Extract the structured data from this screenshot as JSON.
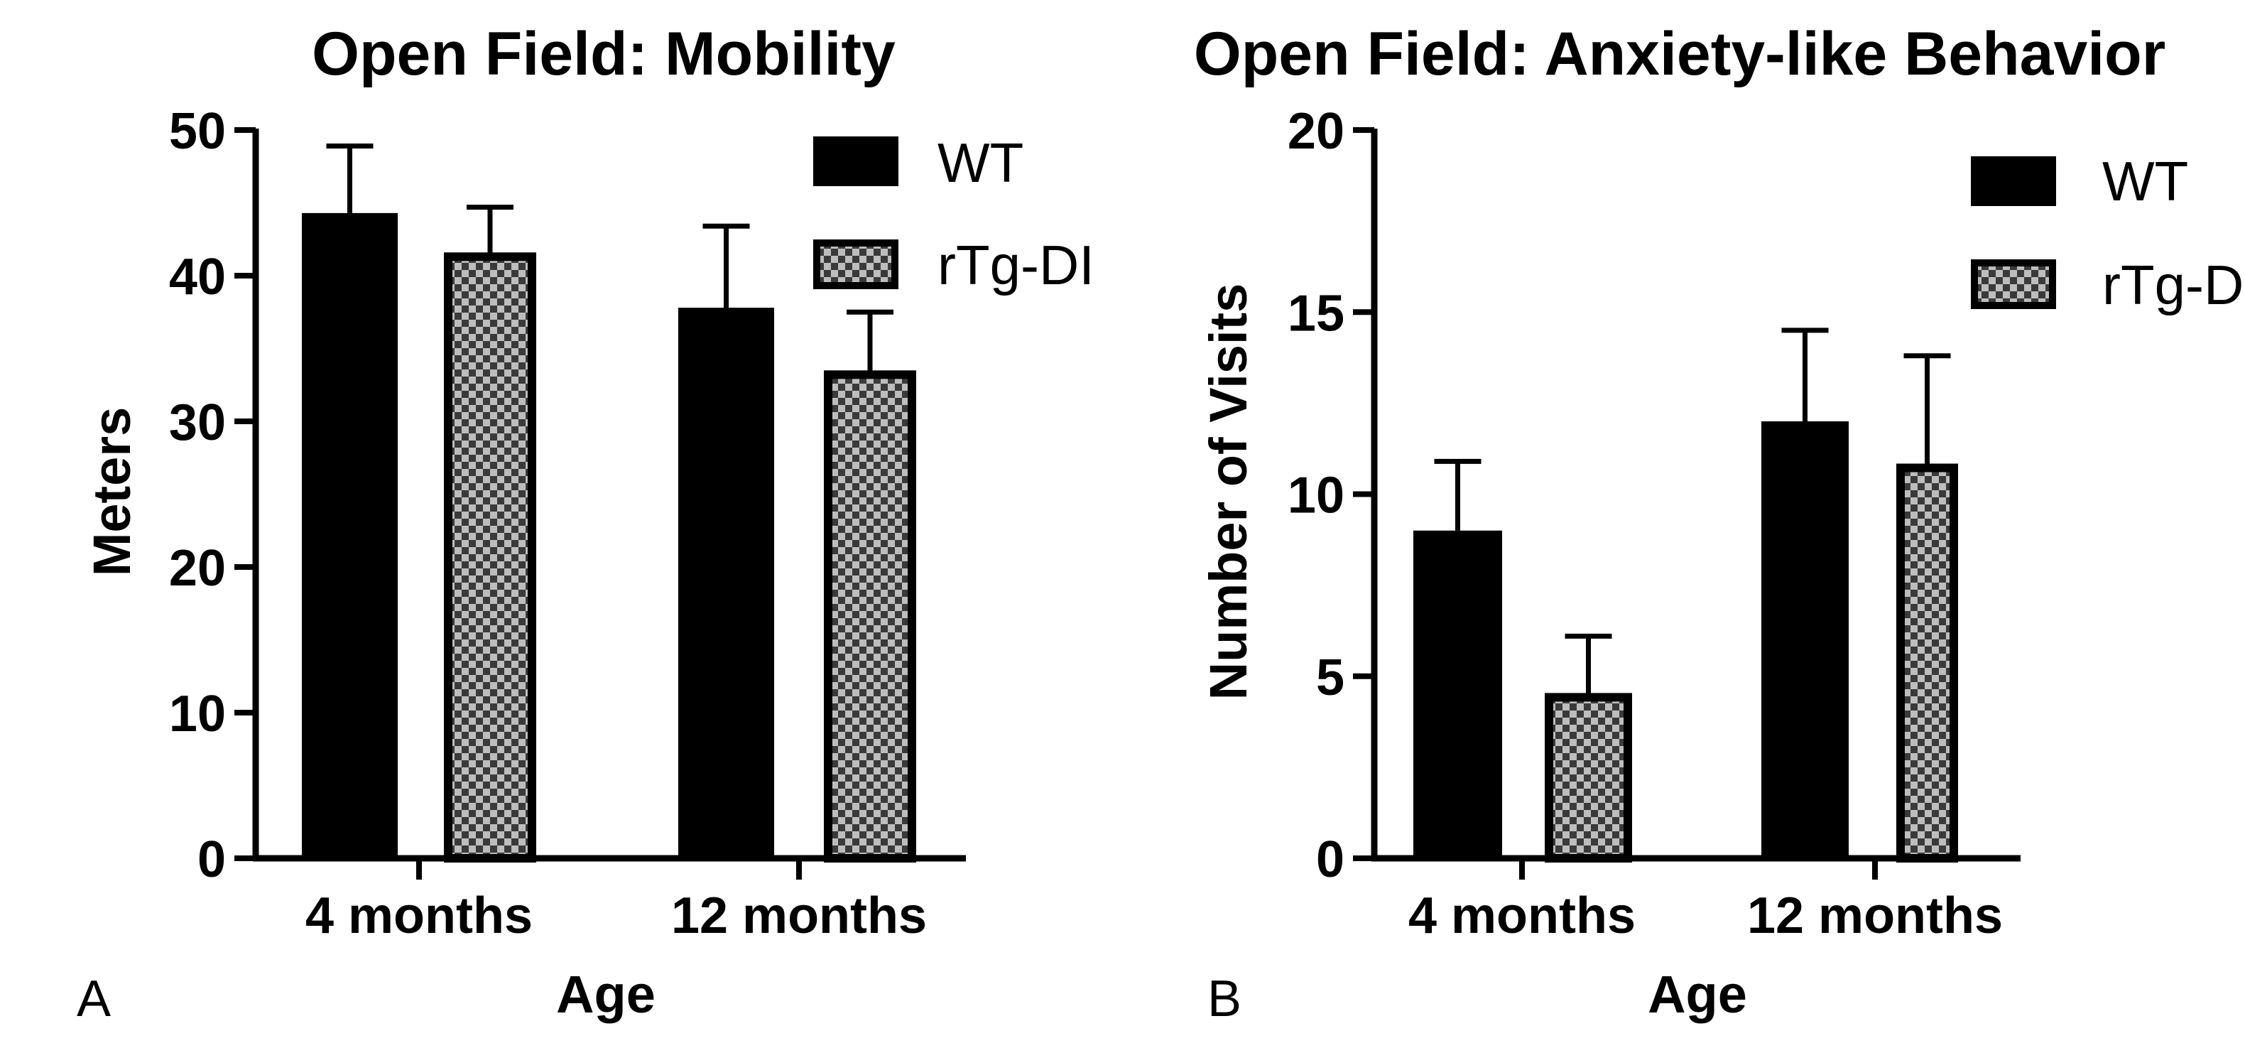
{
  "colors": {
    "wt": "#000000",
    "checker_light": "#bdbdbd",
    "checker_dark": "#3a3a3a",
    "axis": "#000000"
  },
  "chart_data": [
    {
      "type": "bar",
      "panel_label": "A",
      "title": "Open Field: Mobility",
      "xlabel": "Age",
      "ylabel": "Meters",
      "categories": [
        "4 months",
        "12 months"
      ],
      "ylim": [
        0,
        50
      ],
      "yticks": [
        "0",
        "10",
        "20",
        "30",
        "40",
        "50"
      ],
      "legend_position": "top-right",
      "series": [
        {
          "name": "WT",
          "pattern": "solid",
          "values": [
            44.3,
            37.8
          ],
          "errors": [
            4.6,
            5.6
          ]
        },
        {
          "name": "rTg-DI",
          "pattern": "checker",
          "values": [
            41.5,
            33.4
          ],
          "errors": [
            3.2,
            4.1
          ]
        }
      ]
    },
    {
      "type": "bar",
      "panel_label": "B",
      "title": "Open Field: Anxiety-like Behavior",
      "xlabel": "Age",
      "ylabel": "Number of Visits",
      "categories": [
        "4 months",
        "12 months"
      ],
      "ylim": [
        0,
        20
      ],
      "yticks": [
        "0",
        "5",
        "10",
        "15",
        "20"
      ],
      "legend_position": "top-right",
      "series": [
        {
          "name": "WT",
          "pattern": "solid",
          "values": [
            9.0,
            12.0
          ],
          "errors": [
            1.9,
            2.5
          ]
        },
        {
          "name": "rTg-DI",
          "pattern": "checker",
          "values": [
            4.5,
            10.8
          ],
          "errors": [
            1.6,
            3.0
          ]
        }
      ]
    }
  ]
}
